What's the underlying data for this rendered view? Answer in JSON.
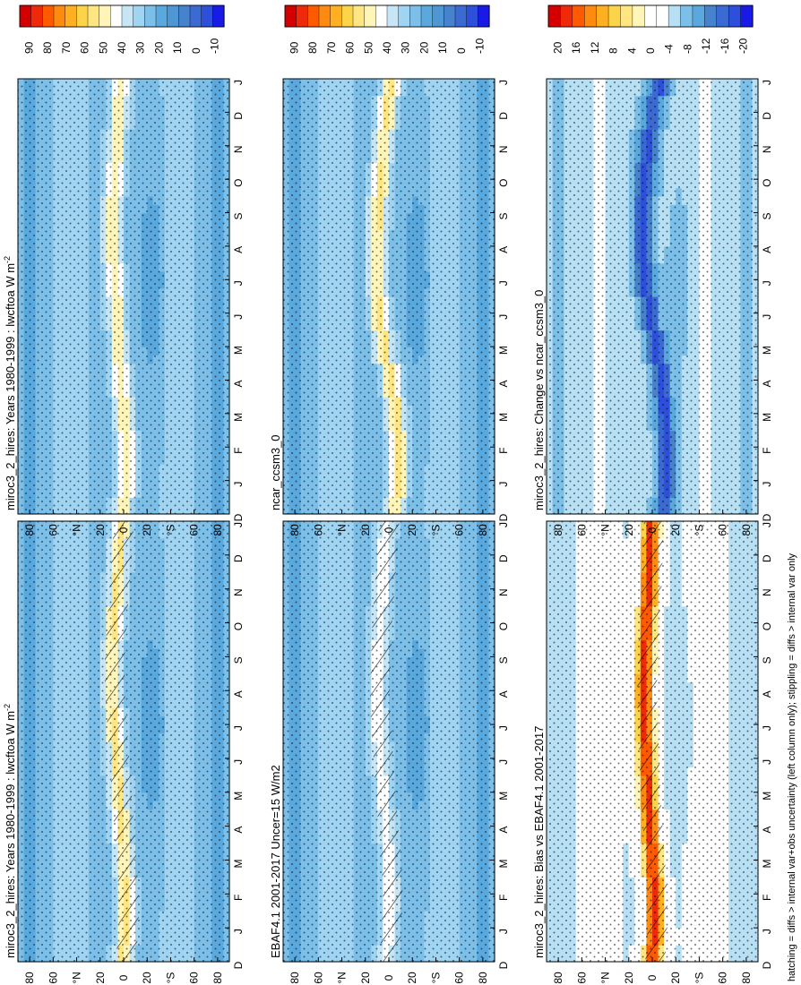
{
  "figure": {
    "footnote": "hatching = diffs > internal var+obs uncertainty (left column only); stippling = diffs > internal var only"
  },
  "colors": {
    "abs_scale": [
      "#1a1ae6",
      "#2d4fdb",
      "#3a6ad2",
      "#4683cc",
      "#4f97d4",
      "#5aa9de",
      "#7cc0ea",
      "#9fd4f2",
      "#c6e6f5",
      "#ffffff",
      "#fff5b8",
      "#ffe680",
      "#fbd44a",
      "#ffb020",
      "#ff8a10",
      "#ff5a00",
      "#ee2a0a",
      "#d40000"
    ],
    "diff_scale": [
      "#1a1ae6",
      "#2d4fdb",
      "#3a6ad2",
      "#4683cc",
      "#5aa9de",
      "#7cc0ea",
      "#b7e0f4",
      "#ffffff",
      "#ffffff",
      "#fff5b8",
      "#ffe680",
      "#fbd44a",
      "#ffb020",
      "#ff8a10",
      "#ff5a00",
      "#ee2a0a",
      "#d40000"
    ]
  },
  "colorbars": {
    "absolute": [
      "90",
      "80",
      "70",
      "60",
      "50",
      "40",
      "30",
      "20",
      "10",
      "0",
      "-10"
    ],
    "difference": [
      "20",
      "16",
      "12",
      "8",
      "4",
      "0",
      "-4",
      "-8",
      "-12",
      "-16",
      "-20"
    ]
  },
  "chart_data": [
    {
      "id": "p1",
      "type": "heatmap",
      "title": "miroc3_2_hires: Years 1980-1999 : lwcftoa W m",
      "title_sup": "-2",
      "units": "W m-2",
      "months": [
        "D",
        "J",
        "F",
        "M",
        "A",
        "M",
        "J",
        "J",
        "A",
        "S",
        "O",
        "N",
        "D",
        "J"
      ],
      "lat_ticks": [
        "80",
        "60",
        "°N",
        "20",
        "0",
        "20",
        "°S",
        "60",
        "80"
      ],
      "latitude_range": [
        -90,
        90
      ],
      "scale": "absolute",
      "itcz_center_lat": [
        1,
        -2,
        -2,
        0,
        2,
        4,
        6,
        8,
        10,
        10,
        8,
        6,
        4,
        2
      ],
      "itcz_peak_value": 55,
      "background_value": 25,
      "hatching": true,
      "stippling": true
    },
    {
      "id": "p2",
      "type": "heatmap",
      "title": "miroc3_2_hires: Years 1980-1999 : lwcftoa W m",
      "title_sup": "-2",
      "units": "W m-2",
      "months": [
        "D",
        "J",
        "F",
        "M",
        "A",
        "M",
        "J",
        "J",
        "A",
        "S",
        "O",
        "N",
        "D",
        "J"
      ],
      "lat_ticks": [
        "80",
        "60",
        "°N",
        "20",
        "0",
        "20",
        "°S",
        "60",
        "80"
      ],
      "latitude_range": [
        -90,
        90
      ],
      "scale": "absolute",
      "itcz_center_lat": [
        1,
        -2,
        -2,
        0,
        2,
        4,
        6,
        8,
        10,
        10,
        8,
        6,
        4,
        2
      ],
      "itcz_peak_value": 52,
      "background_value": 25,
      "hatching": false,
      "stippling": true
    },
    {
      "id": "p3",
      "type": "heatmap",
      "title": "EBAF4.1 2001-2017 Uncer=15 W/m2",
      "title_sup": "",
      "units": "W m-2",
      "months": [
        "D",
        "J",
        "F",
        "M",
        "A",
        "M",
        "J",
        "J",
        "A",
        "S",
        "O",
        "N",
        "D",
        "J"
      ],
      "lat_ticks": [
        "80",
        "60",
        "°N",
        "20",
        "0",
        "20",
        "°S",
        "60",
        "80"
      ],
      "latitude_range": [
        -90,
        90
      ],
      "scale": "absolute",
      "itcz_center_lat": [
        2,
        0,
        -1,
        0,
        3,
        5,
        7,
        9,
        10,
        9,
        8,
        6,
        4,
        2
      ],
      "itcz_peak_value": 45,
      "background_value": 25,
      "hatching": true,
      "stippling": true
    },
    {
      "id": "p4",
      "type": "heatmap",
      "title": "ncar_ccsm3_0",
      "title_sup": "",
      "units": "W m-2",
      "months": [
        "D",
        "J",
        "F",
        "M",
        "A",
        "M",
        "J",
        "J",
        "A",
        "S",
        "O",
        "N",
        "D",
        "J"
      ],
      "lat_ticks": [
        "80",
        "60",
        "°N",
        "20",
        "0",
        "20",
        "°S",
        "60",
        "80"
      ],
      "latitude_range": [
        -90,
        90
      ],
      "scale": "absolute",
      "itcz_center_lat": [
        -5,
        -8,
        -8,
        -6,
        -2,
        4,
        8,
        10,
        10,
        9,
        7,
        5,
        2,
        -2
      ],
      "itcz_peak_value": 55,
      "background_value": 25,
      "hatching": false,
      "stippling": true
    },
    {
      "id": "p5",
      "type": "heatmap",
      "title": "miroc3_2_hires: Bias vs EBAF4.1 2001-2017",
      "title_sup": "",
      "units": "W m-2",
      "months": [
        "D",
        "J",
        "F",
        "M",
        "A",
        "M",
        "J",
        "J",
        "A",
        "S",
        "O",
        "N",
        "D",
        "J"
      ],
      "lat_ticks": [
        "80",
        "60",
        "°N",
        "20",
        "0",
        "20",
        "°S",
        "60",
        "80"
      ],
      "latitude_range": [
        -90,
        90
      ],
      "scale": "difference",
      "itcz_center_lat": [
        0,
        -2,
        -2,
        0,
        2,
        4,
        5,
        6,
        7,
        6,
        5,
        3,
        2,
        1
      ],
      "itcz_peak_value": 18,
      "background_value": -4,
      "hatching": true,
      "stippling": true
    },
    {
      "id": "p6",
      "type": "heatmap",
      "title": "miroc3_2_hires: Change vs ncar_ccsm3_0",
      "title_sup": "",
      "units": "W m-2",
      "months": [
        "D",
        "J",
        "F",
        "M",
        "A",
        "M",
        "J",
        "J",
        "A",
        "S",
        "O",
        "N",
        "D",
        "J"
      ],
      "lat_ticks": [
        "80",
        "60",
        "°N",
        "20",
        "0",
        "20",
        "°S",
        "60",
        "80"
      ],
      "latitude_range": [
        -90,
        90
      ],
      "scale": "difference",
      "itcz_center_lat": [
        -10,
        -12,
        -12,
        -10,
        -8,
        -4,
        2,
        6,
        8,
        8,
        6,
        4,
        0,
        -6
      ],
      "itcz_peak_value": -18,
      "background_value": -6,
      "hatching": false,
      "stippling": true
    }
  ]
}
